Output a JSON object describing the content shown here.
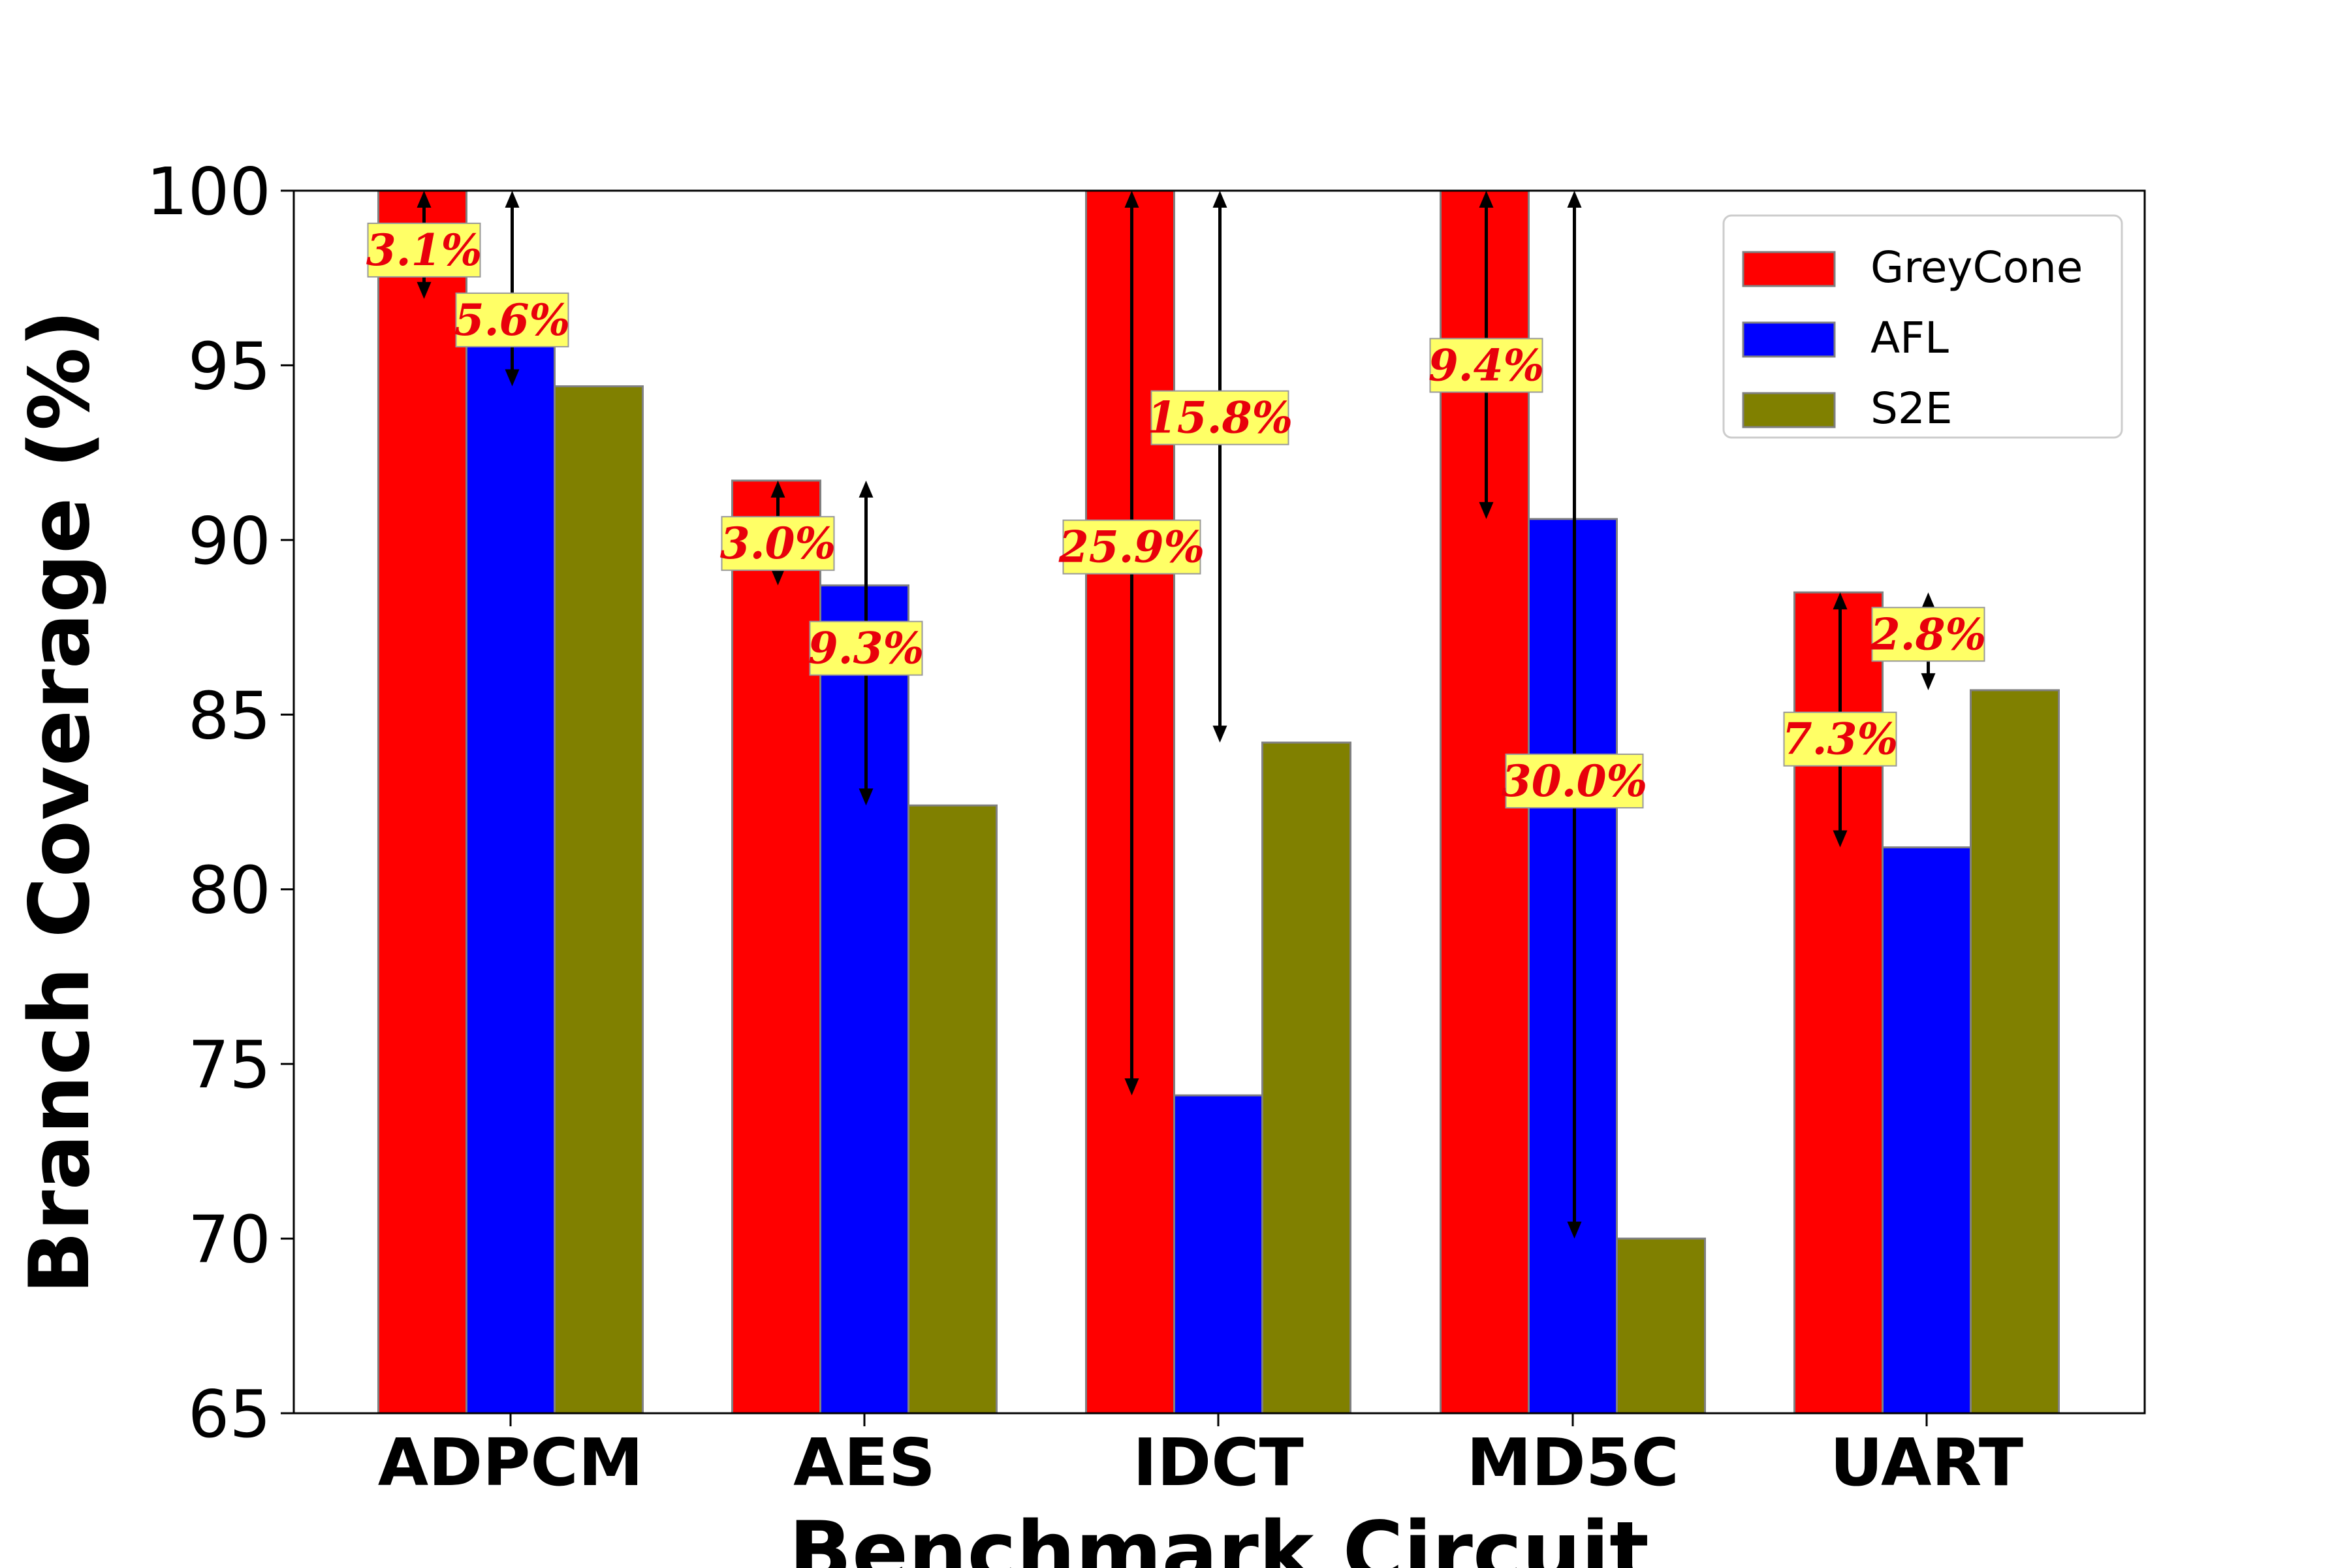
{
  "chart_data": {
    "type": "bar",
    "title": "",
    "xlabel": "Benchmark Circuit",
    "ylabel": "Branch Coverage (%)",
    "ylim": [
      65,
      100
    ],
    "yticks": [
      65,
      70,
      75,
      80,
      85,
      90,
      95,
      100
    ],
    "categories": [
      "ADPCM",
      "AES",
      "IDCT",
      "MD5C",
      "UART"
    ],
    "series": [
      {
        "name": "GreyCone",
        "color": "#ff0000",
        "values": [
          100,
          91.7,
          100,
          100,
          88.5
        ]
      },
      {
        "name": "AFL",
        "color": "#0000ff",
        "values": [
          96.9,
          88.7,
          74.1,
          90.6,
          81.2
        ]
      },
      {
        "name": "S2E",
        "color": "#808000",
        "values": [
          94.4,
          82.4,
          84.2,
          70.0,
          85.7
        ]
      }
    ],
    "annotations": [
      {
        "category": "ADPCM",
        "series": "AFL",
        "text": "3.1%",
        "from": 100,
        "to": 96.9,
        "label_y": 98.3
      },
      {
        "category": "ADPCM",
        "series": "S2E",
        "text": "5.6%",
        "from": 100,
        "to": 94.4,
        "label_y": 96.3
      },
      {
        "category": "AES",
        "series": "AFL",
        "text": "3.0%",
        "from": 91.7,
        "to": 88.7,
        "label_y": 89.9
      },
      {
        "category": "AES",
        "series": "S2E",
        "text": "9.3%",
        "from": 91.7,
        "to": 82.4,
        "label_y": 86.9
      },
      {
        "category": "IDCT",
        "series": "AFL",
        "text": "25.9%",
        "from": 100,
        "to": 74.1,
        "label_y": 89.8
      },
      {
        "category": "IDCT",
        "series": "S2E",
        "text": "15.8%",
        "from": 100,
        "to": 84.2,
        "label_y": 93.5
      },
      {
        "category": "MD5C",
        "series": "AFL",
        "text": "9.4%",
        "from": 100,
        "to": 90.6,
        "label_y": 95.0
      },
      {
        "category": "MD5C",
        "series": "S2E",
        "text": "30.0%",
        "from": 100,
        "to": 70.0,
        "label_y": 83.1
      },
      {
        "category": "UART",
        "series": "AFL",
        "text": "7.3%",
        "from": 88.5,
        "to": 81.2,
        "label_y": 84.3
      },
      {
        "category": "UART",
        "series": "S2E",
        "text": "2.8%",
        "from": 88.5,
        "to": 85.7,
        "label_y": 87.3
      }
    ],
    "annotation_style": {
      "text_color": "#e8000b",
      "box_color": "#ffff66",
      "arrow_color": "#000000"
    },
    "legend_position": "top-right",
    "grid": false
  }
}
